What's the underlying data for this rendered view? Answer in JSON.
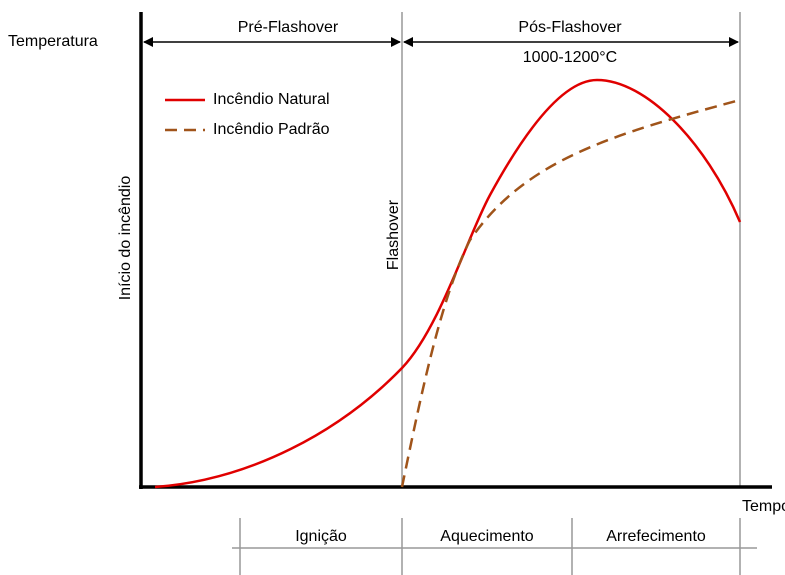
{
  "y_axis_label": "Temperatura",
  "x_axis_label": "Tempo",
  "phases_top": [
    {
      "label": "Pré-Flashover"
    },
    {
      "label": "Pós-Flashover",
      "note": "1000-1200°C"
    }
  ],
  "vertical_labels": {
    "start": "Início do incêndio",
    "flashover": "Flashover"
  },
  "legend": [
    "Incêndio Natural",
    "Incêndio Padrão"
  ],
  "stages": [
    "Ignição",
    "Aquecimento",
    "Arrefecimento"
  ]
}
